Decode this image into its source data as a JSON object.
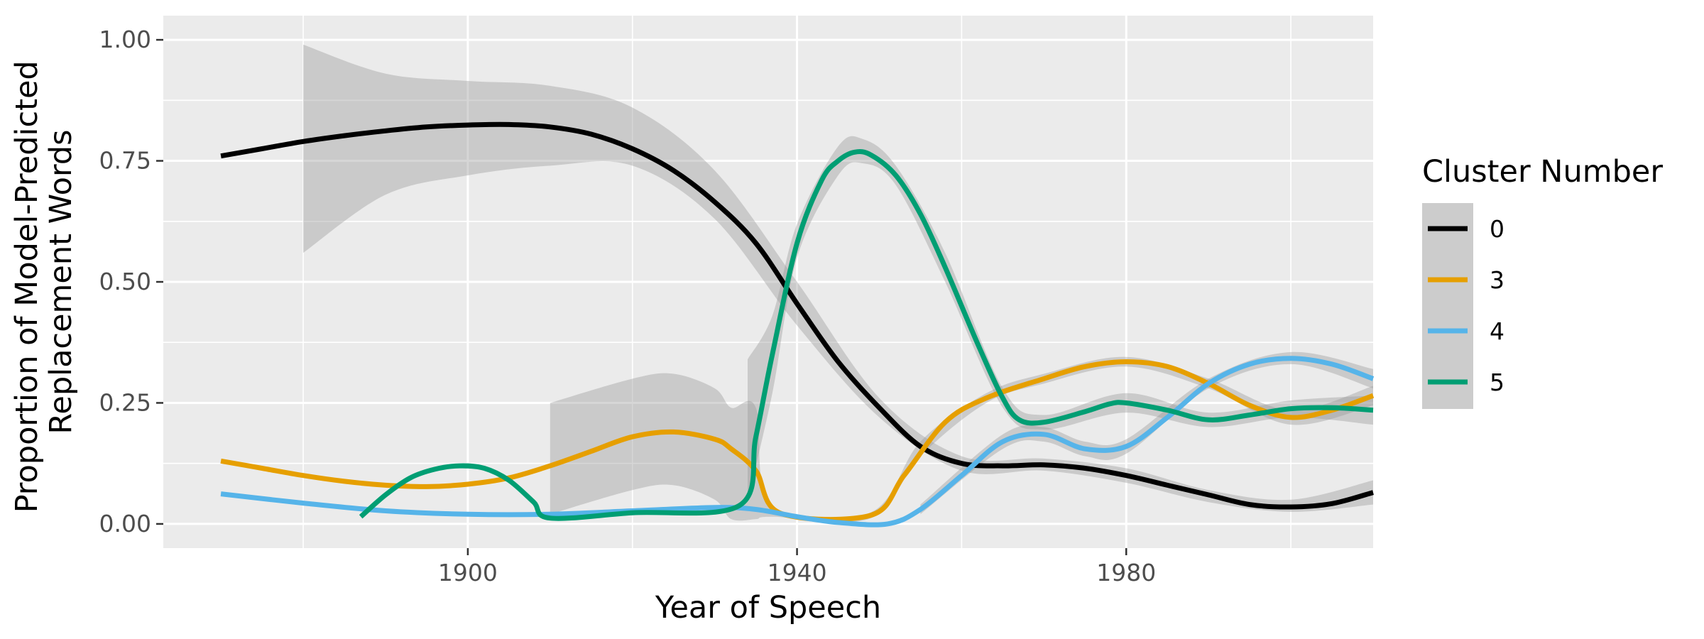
{
  "chart_data": {
    "type": "line",
    "xlabel": "Year of Speech",
    "ylabel_lines": [
      "Proportion of Model-Predicted",
      "Replacement Words"
    ],
    "xlim": [
      1863,
      2010
    ],
    "ylim": [
      -0.05,
      1.05
    ],
    "x_ticks": [
      1900,
      1940,
      1980
    ],
    "x_tick_labels": [
      "1900",
      "1940",
      "1980"
    ],
    "y_ticks": [
      0,
      0.25,
      0.5,
      0.75,
      1.0
    ],
    "y_tick_labels": [
      "0.00",
      "0.25",
      "0.50",
      "0.75",
      "1.00"
    ],
    "grid": true,
    "legend": {
      "title": "Cluster Number",
      "position": "right"
    },
    "series": [
      {
        "name": "0",
        "color": "#000000",
        "points": [
          [
            1870,
            0.76
          ],
          [
            1875,
            0.775
          ],
          [
            1880,
            0.79
          ],
          [
            1885,
            0.802
          ],
          [
            1890,
            0.812
          ],
          [
            1895,
            0.82
          ],
          [
            1900,
            0.824
          ],
          [
            1905,
            0.825
          ],
          [
            1910,
            0.82
          ],
          [
            1915,
            0.805
          ],
          [
            1920,
            0.775
          ],
          [
            1925,
            0.73
          ],
          [
            1930,
            0.665
          ],
          [
            1935,
            0.58
          ],
          [
            1940,
            0.455
          ],
          [
            1945,
            0.335
          ],
          [
            1950,
            0.24
          ],
          [
            1955,
            0.16
          ],
          [
            1960,
            0.125
          ],
          [
            1965,
            0.12
          ],
          [
            1970,
            0.122
          ],
          [
            1975,
            0.115
          ],
          [
            1980,
            0.1
          ],
          [
            1985,
            0.08
          ],
          [
            1990,
            0.06
          ],
          [
            1995,
            0.04
          ],
          [
            2000,
            0.035
          ],
          [
            2005,
            0.042
          ],
          [
            2010,
            0.065
          ]
        ],
        "band": [
          [
            1880,
            0.56,
            0.99
          ],
          [
            1890,
            0.68,
            0.93
          ],
          [
            1900,
            0.72,
            0.915
          ],
          [
            1910,
            0.74,
            0.905
          ],
          [
            1920,
            0.74,
            0.86
          ],
          [
            1930,
            0.63,
            0.73
          ],
          [
            1940,
            0.41,
            0.5
          ],
          [
            1950,
            0.22,
            0.26
          ],
          [
            1960,
            0.11,
            0.14
          ],
          [
            1970,
            0.11,
            0.135
          ],
          [
            1980,
            0.085,
            0.115
          ],
          [
            1990,
            0.045,
            0.07
          ],
          [
            2000,
            0.025,
            0.05
          ],
          [
            2010,
            0.04,
            0.09
          ]
        ]
      },
      {
        "name": "3",
        "color": "#E69F00",
        "points": [
          [
            1870,
            0.13
          ],
          [
            1875,
            0.115
          ],
          [
            1880,
            0.1
          ],
          [
            1885,
            0.088
          ],
          [
            1890,
            0.08
          ],
          [
            1895,
            0.077
          ],
          [
            1900,
            0.082
          ],
          [
            1905,
            0.095
          ],
          [
            1910,
            0.12
          ],
          [
            1915,
            0.15
          ],
          [
            1920,
            0.18
          ],
          [
            1925,
            0.19
          ],
          [
            1930,
            0.175
          ],
          [
            1932,
            0.155
          ],
          [
            1935,
            0.11
          ],
          [
            1938,
            0.022
          ],
          [
            1949,
            0.018
          ],
          [
            1953,
            0.1
          ],
          [
            1958,
            0.21
          ],
          [
            1963,
            0.26
          ],
          [
            1970,
            0.3
          ],
          [
            1975,
            0.325
          ],
          [
            1980,
            0.335
          ],
          [
            1985,
            0.325
          ],
          [
            1990,
            0.29
          ],
          [
            1995,
            0.245
          ],
          [
            2000,
            0.22
          ],
          [
            2005,
            0.235
          ],
          [
            2010,
            0.265
          ]
        ],
        "band": [
          [
            1910,
            0.02,
            0.25
          ],
          [
            1920,
            0.07,
            0.3
          ],
          [
            1925,
            0.08,
            0.31
          ],
          [
            1930,
            0.05,
            0.28
          ],
          [
            1932,
            0.01,
            0.24
          ],
          [
            1935,
            0.01,
            0.24
          ],
          [
            1937,
            0.015,
            0.03
          ],
          [
            1949,
            0.012,
            0.024
          ],
          [
            1955,
            0.14,
            0.17
          ],
          [
            1963,
            0.25,
            0.27
          ],
          [
            1970,
            0.29,
            0.31
          ],
          [
            1980,
            0.325,
            0.345
          ],
          [
            1990,
            0.28,
            0.3
          ],
          [
            2000,
            0.205,
            0.235
          ],
          [
            2010,
            0.245,
            0.285
          ]
        ]
      },
      {
        "name": "4",
        "color": "#56B4E9",
        "points": [
          [
            1870,
            0.062
          ],
          [
            1880,
            0.043
          ],
          [
            1890,
            0.027
          ],
          [
            1900,
            0.02
          ],
          [
            1910,
            0.02
          ],
          [
            1920,
            0.027
          ],
          [
            1930,
            0.034
          ],
          [
            1935,
            0.03
          ],
          [
            1940,
            0.015
          ],
          [
            1945,
            0.003
          ],
          [
            1951,
            0.0
          ],
          [
            1955,
            0.03
          ],
          [
            1960,
            0.1
          ],
          [
            1965,
            0.17
          ],
          [
            1970,
            0.185
          ],
          [
            1975,
            0.155
          ],
          [
            1980,
            0.16
          ],
          [
            1985,
            0.22
          ],
          [
            1990,
            0.29
          ],
          [
            1995,
            0.33
          ],
          [
            2000,
            0.342
          ],
          [
            2005,
            0.33
          ],
          [
            2010,
            0.3
          ]
        ],
        "band": [
          [
            1955,
            0.02,
            0.04
          ],
          [
            1965,
            0.155,
            0.185
          ],
          [
            1970,
            0.17,
            0.2
          ],
          [
            1975,
            0.14,
            0.17
          ],
          [
            1980,
            0.145,
            0.175
          ],
          [
            1990,
            0.28,
            0.3
          ],
          [
            2000,
            0.33,
            0.355
          ],
          [
            2010,
            0.28,
            0.32
          ]
        ]
      },
      {
        "name": "5",
        "color": "#009E73",
        "points": [
          [
            1887,
            0.015
          ],
          [
            1890,
            0.06
          ],
          [
            1893,
            0.095
          ],
          [
            1896,
            0.113
          ],
          [
            1899,
            0.12
          ],
          [
            1902,
            0.115
          ],
          [
            1905,
            0.09
          ],
          [
            1908,
            0.045
          ],
          [
            1910,
            0.012
          ],
          [
            1920,
            0.023
          ],
          [
            1933,
            0.038
          ],
          [
            1935,
            0.18
          ],
          [
            1937,
            0.35
          ],
          [
            1940,
            0.58
          ],
          [
            1943,
            0.71
          ],
          [
            1945,
            0.75
          ],
          [
            1947,
            0.768
          ],
          [
            1949,
            0.762
          ],
          [
            1952,
            0.72
          ],
          [
            1955,
            0.64
          ],
          [
            1958,
            0.53
          ],
          [
            1962,
            0.37
          ],
          [
            1965,
            0.26
          ],
          [
            1967,
            0.215
          ],
          [
            1970,
            0.21
          ],
          [
            1975,
            0.232
          ],
          [
            1978,
            0.248
          ],
          [
            1980,
            0.25
          ],
          [
            1985,
            0.235
          ],
          [
            1990,
            0.215
          ],
          [
            1995,
            0.225
          ],
          [
            2000,
            0.238
          ],
          [
            2005,
            0.24
          ],
          [
            2010,
            0.235
          ]
        ],
        "band": [
          [
            1934,
            0.05,
            0.34
          ],
          [
            1937,
            0.27,
            0.43
          ],
          [
            1940,
            0.55,
            0.62
          ],
          [
            1945,
            0.72,
            0.78
          ],
          [
            1948,
            0.745,
            0.795
          ],
          [
            1952,
            0.7,
            0.74
          ],
          [
            1958,
            0.5,
            0.56
          ],
          [
            1965,
            0.24,
            0.28
          ],
          [
            1970,
            0.195,
            0.225
          ],
          [
            1980,
            0.23,
            0.27
          ],
          [
            1990,
            0.2,
            0.23
          ],
          [
            2000,
            0.22,
            0.255
          ],
          [
            2010,
            0.205,
            0.265
          ]
        ]
      }
    ]
  }
}
